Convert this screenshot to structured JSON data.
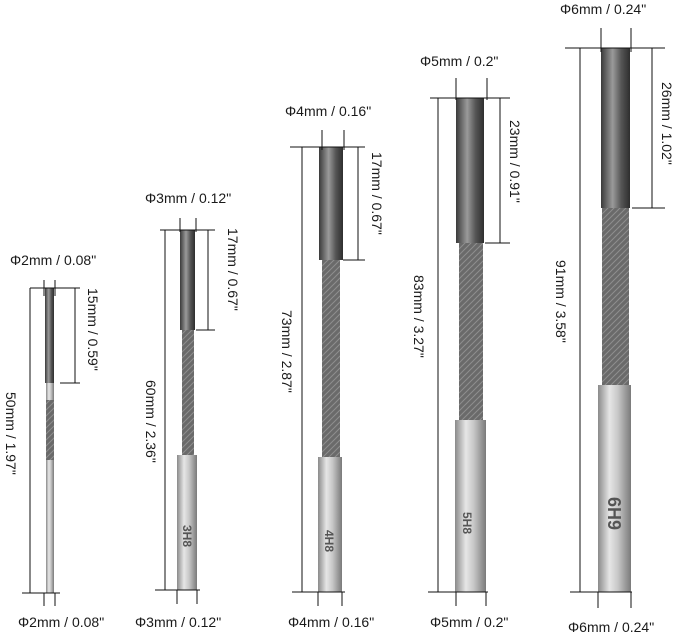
{
  "labels": {
    "r1_top": "Φ2mm / 0.08\"",
    "r1_bottom": "Φ2mm / 0.08\"",
    "r1_flute": "15mm / 0.59\"",
    "r1_total": "50mm / 1.97\"",
    "r2_top": "Φ3mm / 0.12\"",
    "r2_bottom": "Φ3mm / 0.12\"",
    "r2_flute": "17mm / 0.67\"",
    "r2_total": "60mm / 2.36\"",
    "r2_mark": "3H8",
    "r3_top": "Φ4mm / 0.16\"",
    "r3_bottom": "Φ4mm / 0.16\"",
    "r3_flute": "17mm / 0.67\"",
    "r3_total": "73mm / 2.87\"",
    "r3_mark": "4H8",
    "r4_top": "Φ5mm / 0.2\"",
    "r4_bottom": "Φ5mm / 0.2\"",
    "r4_flute": "23mm / 0.91\"",
    "r4_total": "83mm / 3.27\"",
    "r4_mark": "5H8",
    "r5_top": "Φ6mm / 0.24\"",
    "r5_bottom": "Φ6mm / 0.24\"",
    "r5_flute": "26mm / 1.02\"",
    "r5_total": "91mm / 3.58\"",
    "r5_mark": "6H9"
  }
}
